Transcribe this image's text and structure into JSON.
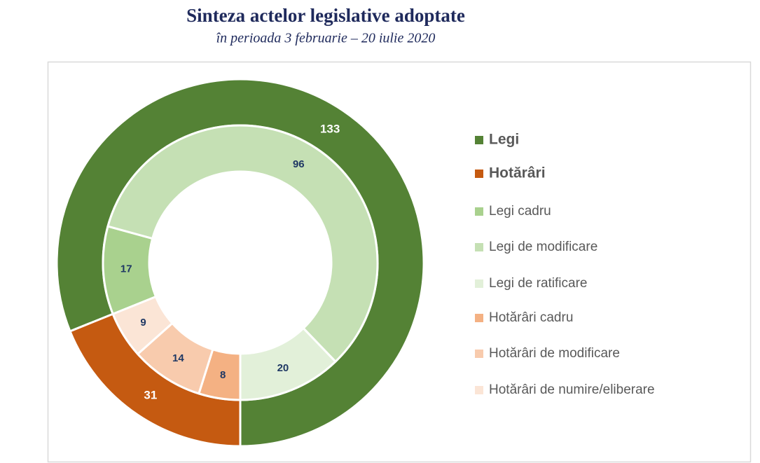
{
  "chart_data": {
    "type": "nested-donut",
    "title": "Sinteza actelor legislative adoptate",
    "subtitle": "în perioada 3 februarie – 20 iulie 2020",
    "rings": [
      {
        "categories": [
          "Legi",
          "Hotărâri"
        ],
        "values": [
          133,
          31
        ],
        "colors": [
          "#548235",
          "#c55a11"
        ]
      },
      {
        "categories": [
          "Legi cadru",
          "Legi de modificare",
          "Legi de ratificare",
          "Hotărâri cadru",
          "Hotărâri de modificare",
          "Hotărâri de numire/eliberare"
        ],
        "values": [
          17,
          96,
          20,
          8,
          14,
          9
        ],
        "colors": [
          "#a9d18e",
          "#c5e0b4",
          "#e2f0d9",
          "#f4b183",
          "#f8cbad",
          "#fbe5d6"
        ]
      }
    ],
    "legend": "right"
  }
}
